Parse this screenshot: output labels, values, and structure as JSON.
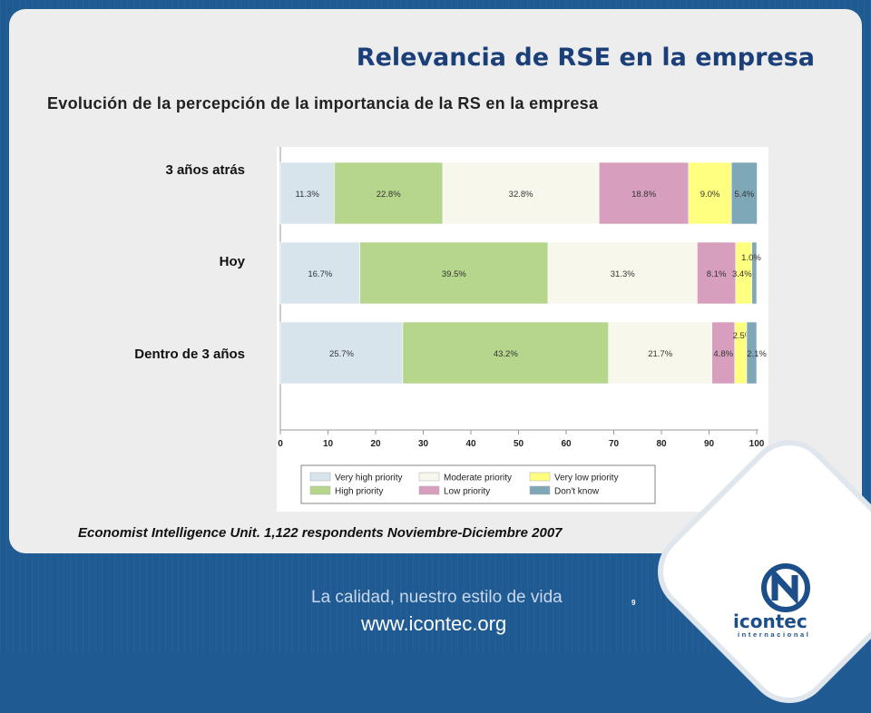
{
  "slide": {
    "title": "Relevancia de RSE en la empresa",
    "subtitle": "Evolución de la percepción de la importancia de la RS en la empresa",
    "source": "Economist Intelligence Unit. 1,122 respondents Noviembre-Diciembre 2007",
    "page_number": "9"
  },
  "footer": {
    "tagline": "La calidad, nuestro estilo de vida",
    "website": "www.icontec.org",
    "logo_text": "icontec",
    "logo_sub": "internacional"
  },
  "colors": {
    "background": "#1f5a93",
    "card": "#ededed",
    "title": "#1b3f78"
  },
  "chart_data": {
    "type": "bar",
    "orientation": "horizontal",
    "stacked": true,
    "categories": [
      "3 años atrás",
      "Hoy",
      "Dentro de 3 años"
    ],
    "series": [
      {
        "name": "Very high priority",
        "color": "#d7e4ec",
        "values": [
          11.3,
          16.7,
          25.7
        ],
        "labels": [
          "11.3%",
          "16.7%",
          "25.7%"
        ]
      },
      {
        "name": "High priority",
        "color": "#b6d68c",
        "values": [
          22.8,
          39.5,
          43.2
        ],
        "labels": [
          "22.8%",
          "39.5%",
          "43.2%"
        ]
      },
      {
        "name": "Moderate priority",
        "color": "#f7f7ec",
        "values": [
          32.8,
          31.3,
          21.7
        ],
        "labels": [
          "32.8%",
          "31.3%",
          "21.7%"
        ]
      },
      {
        "name": "Low priority",
        "color": "#d79fbd",
        "values": [
          18.8,
          8.1,
          4.8
        ],
        "labels": [
          "18.8%",
          "8.1%",
          "4.8%"
        ]
      },
      {
        "name": "Very low priority",
        "color": "#ffff80",
        "values": [
          9.0,
          3.4,
          2.5
        ],
        "labels": [
          "9.0%",
          "3.4%",
          "2.5%"
        ]
      },
      {
        "name": "Don't know",
        "color": "#7ea7b8",
        "values": [
          5.4,
          1.0,
          2.1
        ],
        "labels": [
          "5.4%",
          "1.0%",
          "2.1%"
        ]
      }
    ],
    "xlim": [
      0,
      100
    ],
    "xticks": [
      "0",
      "10",
      "20",
      "30",
      "40",
      "50",
      "60",
      "70",
      "80",
      "90",
      "100"
    ],
    "legend_position": "bottom",
    "legend_order": [
      "Very high priority",
      "Moderate priority",
      "Very low priority",
      "High priority",
      "Low priority",
      "Don't know"
    ]
  }
}
